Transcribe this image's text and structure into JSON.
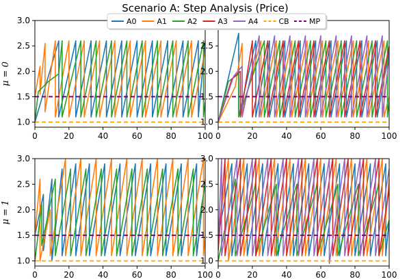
{
  "chart_data": {
    "type": "line",
    "title": "Scenario A: Step Analysis (Price)",
    "legend": {
      "placement": "top-center",
      "entries": [
        {
          "name": "A0",
          "color": "#1f77b4",
          "style": "solid"
        },
        {
          "name": "A1",
          "color": "#ff7f0e",
          "style": "solid"
        },
        {
          "name": "A2",
          "color": "#2ca02c",
          "style": "solid"
        },
        {
          "name": "A3",
          "color": "#d62728",
          "style": "solid"
        },
        {
          "name": "A4",
          "color": "#9467bd",
          "style": "solid"
        },
        {
          "name": "CB",
          "color": "#ffa500",
          "style": "dashed"
        },
        {
          "name": "MP",
          "color": "#800080",
          "style": "dashed"
        }
      ]
    },
    "row_labels": [
      "μ = 0",
      "μ = 1"
    ],
    "xlim": [
      0,
      100
    ],
    "ylim": [
      0.9,
      3.0
    ],
    "x_ticks": [
      "0",
      "20",
      "40",
      "60",
      "80",
      "100"
    ],
    "y_ticks": [
      "1.0",
      "1.5",
      "2.0",
      "2.5",
      "3.0"
    ],
    "y_tick_values": [
      1.0,
      1.5,
      2.0,
      2.5,
      3.0
    ],
    "x_tick_values": [
      0,
      20,
      40,
      60,
      80,
      100
    ],
    "grid": false,
    "reference_lines": {
      "CB": 1.0,
      "MP": 1.5
    },
    "panels": [
      {
        "row": "μ = 0",
        "agents": 3,
        "series": [
          {
            "name": "A0",
            "color": "#1f77b4",
            "x": [
              0,
              14,
              14,
              24,
              24,
              33,
              33,
              42,
              42,
              51,
              51,
              60,
              60,
              69,
              69,
              78,
              78,
              87,
              87,
              96,
              96,
              100
            ],
            "y": [
              1.0,
              2.6,
              1.1,
              2.6,
              1.1,
              2.6,
              1.1,
              2.6,
              1.1,
              2.6,
              1.1,
              2.6,
              1.1,
              2.6,
              1.1,
              2.6,
              1.1,
              2.6,
              1.1,
              2.6,
              1.1,
              2.6
            ]
          },
          {
            "name": "A1",
            "color": "#ff7f0e",
            "x": [
              0,
              3,
              3,
              6,
              6,
              12,
              12,
              20,
              20,
              29,
              29,
              38,
              38,
              47,
              47,
              56,
              56,
              65,
              65,
              74,
              74,
              83,
              83,
              92,
              92,
              100
            ],
            "y": [
              1.5,
              2.1,
              1.55,
              2.55,
              1.2,
              2.6,
              1.1,
              2.6,
              1.1,
              2.6,
              1.1,
              2.6,
              1.1,
              2.6,
              1.1,
              2.6,
              1.1,
              2.6,
              1.1,
              2.6,
              1.1,
              2.6,
              1.1,
              2.6,
              1.1,
              2.4
            ]
          },
          {
            "name": "A2",
            "color": "#2ca02c",
            "x": [
              0,
              2,
              8,
              14,
              16,
              16,
              27,
              27,
              36,
              36,
              45,
              45,
              54,
              54,
              63,
              63,
              72,
              72,
              81,
              81,
              90,
              90,
              99,
              99,
              100
            ],
            "y": [
              1.0,
              1.6,
              1.8,
              1.95,
              2.6,
              1.1,
              2.6,
              1.1,
              2.6,
              1.1,
              2.6,
              1.1,
              2.6,
              1.1,
              2.6,
              1.1,
              2.6,
              1.1,
              2.6,
              1.1,
              2.6,
              1.1,
              2.6,
              1.1,
              1.4
            ]
          }
        ]
      },
      {
        "row": "μ = 0",
        "agents": 5,
        "series": [
          {
            "name": "A0",
            "color": "#1f77b4",
            "x": [
              0,
              12,
              12,
              22,
              22,
              30,
              30,
              39,
              39,
              48,
              48,
              57,
              57,
              66,
              66,
              75,
              75,
              84,
              84,
              93,
              93,
              100
            ],
            "y": [
              1.0,
              2.75,
              1.1,
              2.6,
              1.1,
              2.6,
              1.1,
              2.6,
              1.1,
              2.6,
              1.1,
              2.6,
              1.1,
              2.6,
              1.1,
              2.6,
              1.1,
              2.6,
              1.1,
              2.6,
              1.1,
              2.4
            ]
          },
          {
            "name": "A1",
            "color": "#ff7f0e",
            "x": [
              0,
              10,
              14,
              14,
              25,
              25,
              34,
              34,
              43,
              43,
              52,
              52,
              61,
              61,
              70,
              70,
              79,
              79,
              88,
              88,
              97,
              97,
              100
            ],
            "y": [
              1.0,
              1.7,
              2.55,
              1.2,
              2.6,
              1.1,
              2.6,
              1.1,
              2.6,
              1.1,
              2.6,
              1.1,
              2.6,
              1.1,
              2.6,
              1.1,
              2.6,
              1.1,
              2.6,
              1.1,
              2.6,
              1.1,
              1.5
            ]
          },
          {
            "name": "A2",
            "color": "#2ca02c",
            "x": [
              0,
              6,
              12,
              12,
              27,
              27,
              36,
              36,
              45,
              45,
              54,
              54,
              63,
              63,
              72,
              72,
              81,
              81,
              90,
              90,
              99,
              99,
              100
            ],
            "y": [
              1.0,
              1.8,
              1.95,
              1.1,
              2.6,
              1.1,
              2.6,
              1.1,
              2.6,
              1.1,
              2.6,
              1.1,
              2.6,
              1.1,
              2.6,
              1.1,
              2.6,
              1.1,
              2.6,
              1.1,
              2.6,
              1.1,
              1.4
            ]
          },
          {
            "name": "A3",
            "color": "#d62728",
            "x": [
              0,
              8,
              13,
              13,
              20,
              20,
              29,
              29,
              38,
              38,
              47,
              47,
              56,
              56,
              65,
              65,
              74,
              74,
              83,
              83,
              92,
              92,
              100
            ],
            "y": [
              1.0,
              1.85,
              2.0,
              1.1,
              2.6,
              1.1,
              2.6,
              1.1,
              2.6,
              1.1,
              2.6,
              1.1,
              2.6,
              1.1,
              2.6,
              1.1,
              2.6,
              1.1,
              2.6,
              1.1,
              2.6,
              1.1,
              2.5
            ]
          },
          {
            "name": "A4",
            "color": "#9467bd",
            "x": [
              0,
              9,
              14,
              14,
              24,
              24,
              33,
              33,
              42,
              42,
              51,
              51,
              60,
              60,
              69,
              69,
              78,
              78,
              87,
              87,
              96,
              96,
              100
            ],
            "y": [
              1.0,
              1.9,
              2.1,
              1.1,
              2.7,
              1.1,
              2.7,
              1.1,
              2.7,
              1.1,
              2.7,
              1.1,
              2.7,
              1.1,
              2.7,
              1.1,
              2.7,
              1.1,
              2.7,
              1.1,
              2.7,
              1.1,
              2.3
            ]
          }
        ]
      },
      {
        "row": "μ = 1",
        "agents": 3,
        "series": [
          {
            "name": "A0",
            "color": "#1f77b4",
            "x": [
              0,
              5,
              5,
              10,
              10,
              16,
              16,
              24,
              24,
              32,
              32,
              41,
              41,
              50,
              50,
              59,
              59,
              68,
              68,
              77,
              77,
              86,
              86,
              95,
              95,
              100
            ],
            "y": [
              1.5,
              2.3,
              1.2,
              2.6,
              1.0,
              2.8,
              1.1,
              2.9,
              1.1,
              2.9,
              1.1,
              2.9,
              1.1,
              2.9,
              1.1,
              2.9,
              1.1,
              2.9,
              1.1,
              2.9,
              1.1,
              2.9,
              1.1,
              2.9,
              1.1,
              2.6
            ]
          },
          {
            "name": "A1",
            "color": "#ff7f0e",
            "x": [
              0,
              3,
              3,
              9,
              9,
              18,
              18,
              27,
              27,
              36,
              36,
              45,
              45,
              54,
              54,
              63,
              63,
              72,
              72,
              81,
              81,
              90,
              90,
              99,
              99,
              100
            ],
            "y": [
              1.5,
              2.6,
              1.0,
              2.0,
              1.1,
              3.0,
              1.1,
              3.0,
              1.1,
              3.0,
              1.1,
              3.0,
              1.1,
              3.0,
              1.1,
              3.0,
              1.1,
              3.0,
              1.1,
              3.0,
              1.1,
              3.0,
              1.1,
              3.0,
              1.1,
              1.5
            ]
          },
          {
            "name": "A2",
            "color": "#2ca02c",
            "x": [
              0,
              4,
              4,
              12,
              12,
              21,
              21,
              30,
              30,
              39,
              39,
              48,
              48,
              57,
              57,
              66,
              66,
              75,
              75,
              84,
              84,
              93,
              93,
              100
            ],
            "y": [
              1.0,
              2.1,
              1.3,
              2.6,
              1.1,
              2.8,
              1.1,
              2.8,
              1.1,
              2.8,
              1.1,
              2.8,
              1.1,
              2.8,
              1.1,
              2.8,
              1.1,
              2.8,
              1.1,
              2.8,
              1.1,
              2.8,
              1.1,
              2.5
            ]
          }
        ]
      },
      {
        "row": "μ = 1",
        "agents": 5,
        "series": [
          {
            "name": "A0",
            "color": "#1f77b4",
            "x": [
              0,
              8,
              8,
              17,
              17,
              26,
              26,
              35,
              35,
              44,
              44,
              53,
              53,
              62,
              62,
              71,
              71,
              80,
              80,
              89,
              89,
              98,
              98,
              100
            ],
            "y": [
              1.5,
              2.9,
              1.1,
              2.9,
              1.1,
              2.9,
              1.1,
              2.9,
              1.1,
              2.9,
              1.1,
              2.9,
              1.1,
              2.9,
              1.1,
              2.9,
              1.1,
              2.9,
              1.1,
              2.9,
              1.1,
              2.9,
              1.1,
              1.8
            ]
          },
          {
            "name": "A1",
            "color": "#ff7f0e",
            "x": [
              0,
              6,
              6,
              15,
              15,
              24,
              24,
              33,
              33,
              42,
              42,
              51,
              51,
              60,
              60,
              69,
              69,
              78,
              78,
              87,
              87,
              96,
              96,
              100
            ],
            "y": [
              1.5,
              3.0,
              1.0,
              3.0,
              1.1,
              3.0,
              1.1,
              3.0,
              1.1,
              3.0,
              1.1,
              3.0,
              1.1,
              3.0,
              1.1,
              3.0,
              1.1,
              3.0,
              1.1,
              3.0,
              1.1,
              3.0,
              1.1,
              2.6
            ]
          },
          {
            "name": "A2",
            "color": "#2ca02c",
            "x": [
              0,
              10,
              10,
              22,
              22,
              34,
              34,
              46,
              46,
              58,
              58,
              70,
              70,
              82,
              82,
              94,
              94,
              100
            ],
            "y": [
              1.0,
              2.6,
              1.1,
              2.5,
              1.1,
              2.5,
              1.1,
              2.5,
              1.1,
              2.5,
              1.1,
              2.5,
              1.1,
              2.5,
              1.1,
              2.5,
              1.1,
              1.8
            ]
          },
          {
            "name": "A3",
            "color": "#d62728",
            "x": [
              0,
              4,
              4,
              13,
              13,
              22,
              22,
              31,
              31,
              40,
              40,
              49,
              49,
              58,
              58,
              67,
              67,
              76,
              76,
              85,
              85,
              94,
              94,
              100
            ],
            "y": [
              1.2,
              3.0,
              1.1,
              3.0,
              1.1,
              3.0,
              1.1,
              3.0,
              1.1,
              3.0,
              1.1,
              3.0,
              1.1,
              3.0,
              1.1,
              3.0,
              1.1,
              3.0,
              1.1,
              3.0,
              1.1,
              3.0,
              1.1,
              2.4
            ]
          },
          {
            "name": "A4",
            "color": "#9467bd",
            "x": [
              0,
              2,
              2,
              11,
              11,
              20,
              20,
              29,
              29,
              38,
              38,
              47,
              47,
              56,
              56,
              65,
              65,
              74,
              74,
              83,
              83,
              92,
              92,
              100
            ],
            "y": [
              1.3,
              3.0,
              1.1,
              3.0,
              1.1,
              3.0,
              1.1,
              3.0,
              1.1,
              3.0,
              1.1,
              3.0,
              1.1,
              3.0,
              1.1,
              3.0,
              0.95,
              3.0,
              1.1,
              3.0,
              1.1,
              3.0,
              1.1,
              2.8
            ]
          }
        ]
      }
    ]
  }
}
